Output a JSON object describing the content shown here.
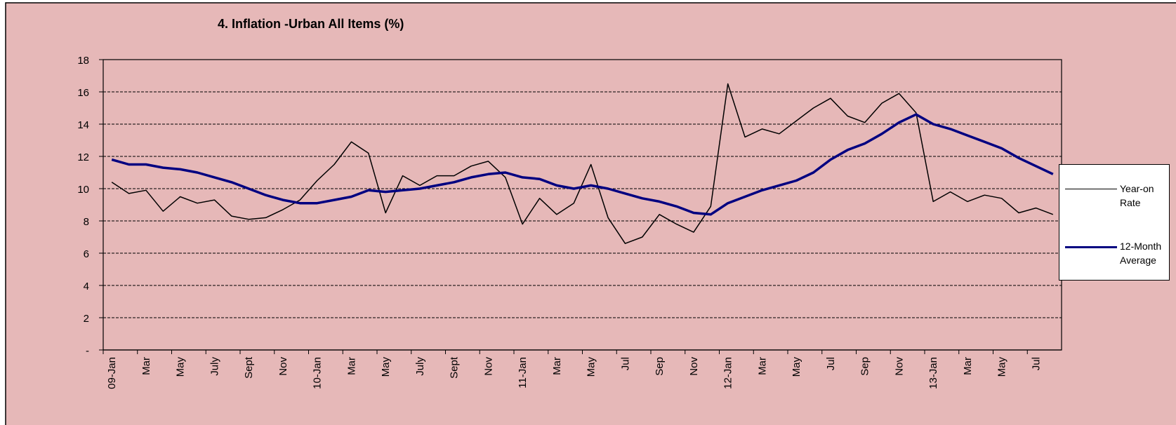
{
  "chart_data": {
    "type": "line",
    "title": "4. Inflation -Urban All Items (%)",
    "categories": [
      "09-Jan",
      null,
      "Mar",
      null,
      "May",
      null,
      "July",
      null,
      "Sept",
      null,
      "Nov",
      null,
      "10-Jan",
      null,
      "Mar",
      null,
      "May",
      null,
      "July",
      null,
      "Sept",
      null,
      "Nov",
      null,
      "11-Jan",
      null,
      "Mar",
      null,
      "May",
      null,
      "Jul",
      null,
      "Sep",
      null,
      "Nov",
      null,
      "12-Jan",
      null,
      "Mar",
      null,
      "May",
      null,
      "Jul",
      null,
      "Sep",
      null,
      "Nov",
      null,
      "13-Jan",
      null,
      "Mar",
      null,
      "May",
      null,
      "Jul",
      null
    ],
    "series": [
      {
        "name": "Year-on Rate",
        "color": "#000000",
        "width": 1.5,
        "values": [
          10.4,
          9.7,
          9.9,
          8.6,
          9.5,
          9.1,
          9.3,
          8.3,
          8.1,
          8.2,
          8.7,
          9.3,
          10.5,
          11.5,
          12.9,
          12.2,
          8.5,
          10.8,
          10.2,
          10.8,
          10.8,
          11.4,
          11.7,
          10.7,
          7.8,
          9.4,
          8.4,
          9.1,
          11.5,
          8.2,
          6.6,
          7.0,
          8.4,
          7.8,
          7.3,
          8.9,
          16.5,
          13.2,
          13.7,
          13.4,
          14.2,
          15.0,
          15.6,
          14.5,
          14.1,
          15.3,
          15.9,
          14.7,
          9.2,
          9.8,
          9.2,
          9.6,
          9.4,
          8.5,
          8.8,
          8.4
        ]
      },
      {
        "name": "12-Month Average",
        "color": "#000080",
        "width": 3.5,
        "values": [
          11.8,
          11.5,
          11.5,
          11.3,
          11.2,
          11.0,
          10.7,
          10.4,
          10.0,
          9.6,
          9.3,
          9.1,
          9.1,
          9.3,
          9.5,
          9.9,
          9.8,
          9.9,
          10.0,
          10.2,
          10.4,
          10.7,
          10.9,
          11.0,
          10.7,
          10.6,
          10.2,
          10.0,
          10.2,
          10.0,
          9.7,
          9.4,
          9.2,
          8.9,
          8.5,
          8.4,
          9.1,
          9.5,
          9.9,
          10.2,
          10.5,
          11.0,
          11.8,
          12.4,
          12.8,
          13.4,
          14.1,
          14.6,
          14.0,
          13.7,
          13.3,
          12.9,
          12.5,
          11.9,
          11.4,
          10.9
        ]
      }
    ],
    "ylim": [
      0,
      18
    ],
    "yticks": [
      {
        "value": 0,
        "label": "-"
      },
      2,
      4,
      6,
      8,
      10,
      12,
      14,
      16,
      18
    ],
    "grid": true,
    "legend": "right"
  }
}
